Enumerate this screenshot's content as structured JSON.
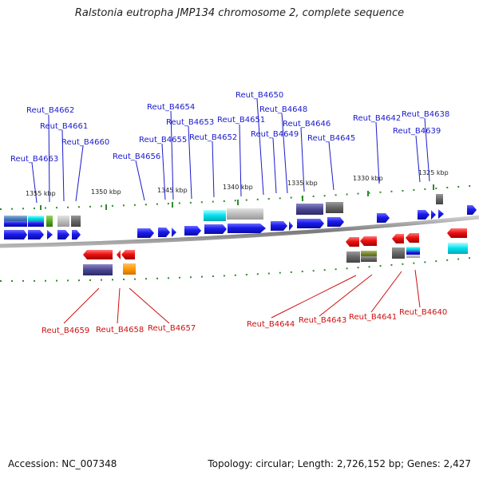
{
  "title": "Ralstonia eutropha JMP134 chromosome 2, complete sequence",
  "footer": {
    "accession": "Accession: NC_007348",
    "summary": "Topology: circular; Length: 2,726,152 bp; Genes: 2,427"
  },
  "colors": {
    "forward_gene": "#1a1aee",
    "reverse_gene": "#ee1111",
    "forward_label": "#1a1acc",
    "reverse_label": "#cc1111",
    "backbone": "#888888",
    "tick": "#2e8b2e"
  },
  "scale_labels": [
    "1355 kbp",
    "1350 kbp",
    "1345 kbp",
    "1340 kbp",
    "1335 kbp",
    "1330 kbp",
    "1325 kbp"
  ],
  "forward_gene_labels": [
    "Reut_B4663",
    "Reut_B4662",
    "Reut_B4661",
    "Reut_B4660",
    "Reut_B4656",
    "Reut_B4655",
    "Reut_B4654",
    "Reut_B4653",
    "Reut_B4652",
    "Reut_B4651",
    "Reut_B4650",
    "Reut_B4649",
    "Reut_B4648",
    "Reut_B4646",
    "Reut_B4645",
    "Reut_B4642",
    "Reut_B4639",
    "Reut_B4638"
  ],
  "reverse_gene_labels": [
    "Reut_B4659",
    "Reut_B4658",
    "Reut_B4657",
    "Reut_B4644",
    "Reut_B4643",
    "Reut_B4641",
    "Reut_B4640"
  ]
}
